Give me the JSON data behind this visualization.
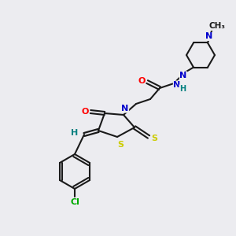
{
  "bg_color": "#ececf0",
  "bond_color": "#1a1a1a",
  "atom_colors": {
    "O": "#ff0000",
    "N": "#0000cc",
    "S": "#cccc00",
    "Cl": "#00aa00",
    "H": "#008080",
    "C": "#1a1a1a"
  }
}
